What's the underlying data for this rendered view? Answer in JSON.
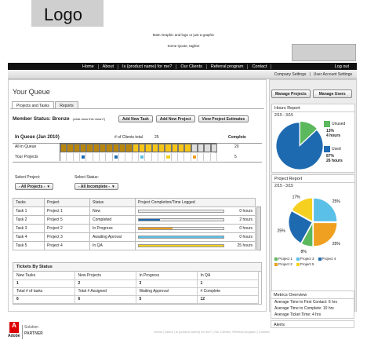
{
  "header": {
    "logo": "Logo",
    "main_graphic": "Main Graphic and logo or just a graphic",
    "tagline": "Some Quote, tagline"
  },
  "nav": {
    "items": [
      "Home",
      "About",
      "Is {product name} for me?",
      "Our Clients",
      "Referral program",
      "Contact"
    ],
    "logout": "Log out"
  },
  "subnav": {
    "company": "Company Settings",
    "user": "User Account Settings"
  },
  "queue": {
    "title": "Your Queue",
    "tabs": [
      "Projects and Tasks",
      "Reports"
    ],
    "member_status": "Member Status: Bronze",
    "what_link": "(what does this mean?)",
    "buttons": [
      "Add New Task",
      "Add New Project",
      "View Project Estimates"
    ],
    "in_queue_label": "In Queue (Jan 2010)",
    "clients_label": "# of Clients total",
    "clients_total": "25",
    "complete_label": "Complete",
    "rows": [
      {
        "label": "All in Queue",
        "complete": "20"
      },
      {
        "label": "Your Projects",
        "complete": "5"
      }
    ],
    "select_project_label": "Select Project:",
    "select_project_value": "- All Projects -",
    "select_status_label": "Select Status:",
    "select_status_value": "- All Incomplete -",
    "task_headers": [
      "Tasks",
      "Project",
      "Status",
      "Project Completion/Time Logged"
    ],
    "tasks": [
      {
        "task": "Task 1",
        "project": "Project 1",
        "status": "New",
        "progress": 0,
        "color": "#ccc",
        "time": "0 hours"
      },
      {
        "task": "Task 2",
        "project": "Project 5",
        "status": "Completed",
        "progress": 0.25,
        "color": "#1e6ab0",
        "time": "2 hours"
      },
      {
        "task": "Task 3",
        "project": "Project 2",
        "status": "In Progress",
        "progress": 0.4,
        "color": "#f0a020",
        "time": "0 hours"
      },
      {
        "task": "Task 4",
        "project": "Project 3",
        "status": "Awaiting Aproval",
        "progress": 1.0,
        "color": "#5bc0e8",
        "time": "0 hours"
      },
      {
        "task": "Task 5",
        "project": "Project 4",
        "status": "In QA",
        "progress": 1.0,
        "color": "#f5d020",
        "time": "25 hours"
      }
    ],
    "tickets_title": "Tickets By Status",
    "tickets": [
      [
        {
          "l": "New Tasks",
          "v": "1"
        },
        {
          "l": "New Projects",
          "v": "2"
        },
        {
          "l": "In Progress",
          "v": "3"
        },
        {
          "l": "In QA",
          "v": "1"
        }
      ],
      [
        {
          "l": "Total # of tasks",
          "v": "6"
        },
        {
          "l": "Total # Assigned",
          "v": "6"
        },
        {
          "l": "Waiting Approval",
          "v": "5"
        },
        {
          "l": "# Complete",
          "v": "12"
        }
      ]
    ]
  },
  "right": {
    "manage_projects": "Manage Projects",
    "manage_users": "Manage Users",
    "hours_title": "Hours Report",
    "hours_range": "2/15 - 3/15",
    "hours_chart": {
      "unused_label": "Unused",
      "unused_pct": "13%",
      "unused_hours": "4 hours",
      "used_label": "Used",
      "used_pct": "87%",
      "used_hours": "26 hours",
      "unused_color": "#5cb85c",
      "used_color": "#1e6ab0"
    },
    "project_title": "Project Report",
    "project_range": "2/15 - 3/15",
    "project_slices": [
      {
        "pct": "25%",
        "color": "#5bc0e8"
      },
      {
        "pct": "25%",
        "color": "#f0a020"
      },
      {
        "pct": "8%",
        "color": "#5cb85c"
      },
      {
        "pct": "25%",
        "color": "#1e6ab0"
      },
      {
        "pct": "17%",
        "color": "#f5d020"
      }
    ],
    "project_legend": [
      "Project 1",
      "Project 3",
      "Project 4",
      "Project 2",
      "Project 5"
    ],
    "project_legend_colors": [
      "#5cb85c",
      "#5bc0e8",
      "#1e6ab0",
      "#f0a020",
      "#f5d020"
    ],
    "metrics_title": "Metrics Overview",
    "metrics": [
      "Average Time to First Contact: 6 hrs",
      "Average Time to Complete: 10 hrs",
      "Average Ticket Time: 4 hrs"
    ],
    "alerts_title": "Alerts"
  },
  "footer": {
    "brand": "Adobe",
    "partner_line1": "Solution",
    "partner_line2": "PARTNER",
    "links": "Home | About | Is {product name} for me? | Our Clients | Referral program | Contact"
  }
}
